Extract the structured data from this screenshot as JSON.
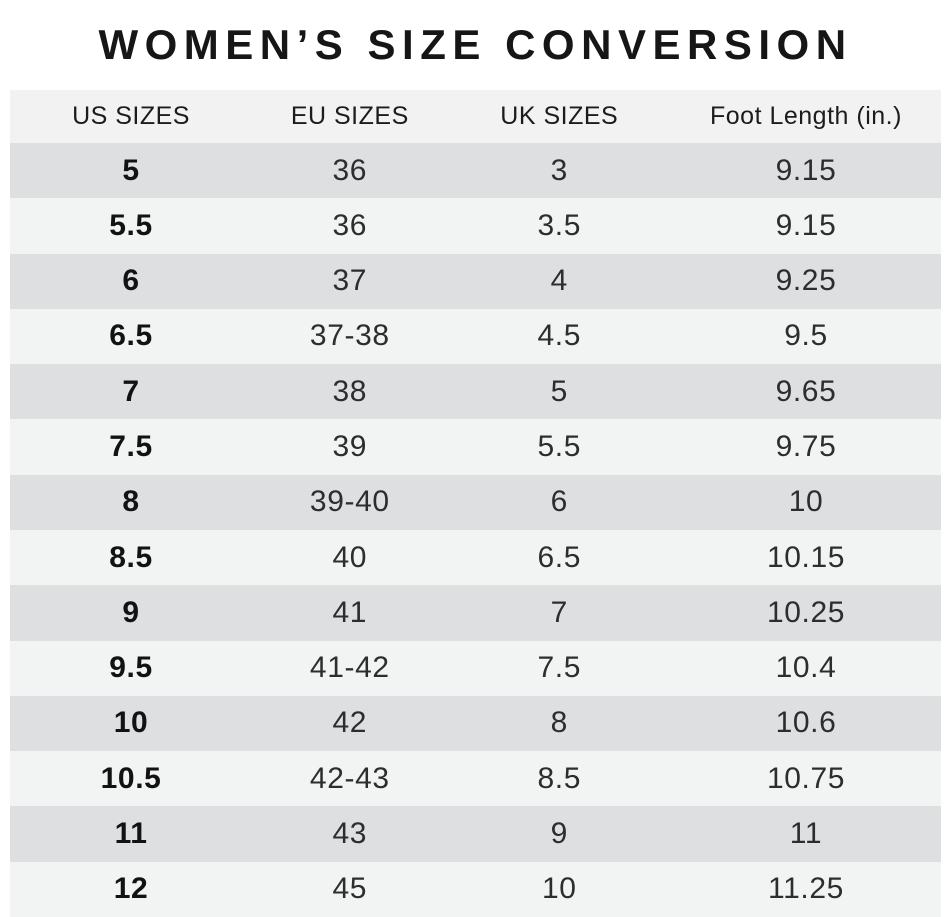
{
  "title": "WOMEN’S SIZE CONVERSION",
  "colors": {
    "row_dark": "#dedfe0",
    "row_light": "#f2f3f3",
    "header_bg": "#f2f2f2",
    "title_text": "#161616",
    "cell_text": "#2d2d2e",
    "us_size_text": "#121212",
    "page_bg": "#ffffff"
  },
  "chart_data": {
    "type": "table",
    "title": "WOMEN’S SIZE CONVERSION",
    "columns": [
      "US SIZES",
      "EU SIZES",
      "UK SIZES",
      "Foot Length (in.)"
    ],
    "rows": [
      [
        "5",
        "36",
        "3",
        "9.15"
      ],
      [
        "5.5",
        "36",
        "3.5",
        "9.15"
      ],
      [
        "6",
        "37",
        "4",
        "9.25"
      ],
      [
        "6.5",
        "37-38",
        "4.5",
        "9.5"
      ],
      [
        "7",
        "38",
        "5",
        "9.65"
      ],
      [
        "7.5",
        "39",
        "5.5",
        "9.75"
      ],
      [
        "8",
        "39-40",
        "6",
        "10"
      ],
      [
        "8.5",
        "40",
        "6.5",
        "10.15"
      ],
      [
        "9",
        "41",
        "7",
        "10.25"
      ],
      [
        "9.5",
        "41-42",
        "7.5",
        "10.4"
      ],
      [
        "10",
        "42",
        "8",
        "10.6"
      ],
      [
        "10.5",
        "42-43",
        "8.5",
        "10.75"
      ],
      [
        "11",
        "43",
        "9",
        "11"
      ],
      [
        "12",
        "45",
        "10",
        "11.25"
      ]
    ]
  }
}
